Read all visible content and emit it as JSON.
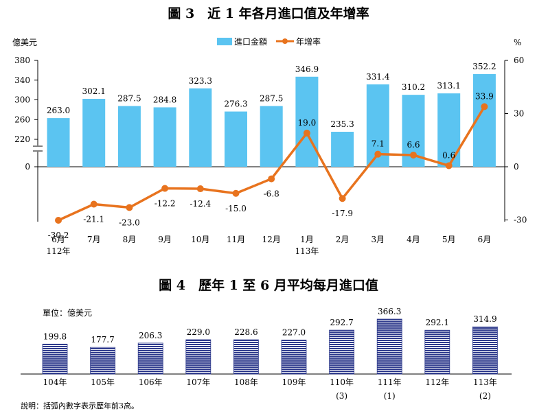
{
  "chart_data": [
    {
      "type": "bar+line",
      "title": "圖 3　近 1 年各月進口值及年增率",
      "y_left_unit": "億美元",
      "y_right_unit": "%",
      "legend": {
        "bar": "進口金額",
        "line": "年增率",
        "position": "top-center"
      },
      "left_axis_ticks": [
        "380",
        "340",
        "300",
        "260",
        "220",
        "0"
      ],
      "left_axis_note": "broken axis between 220 and 0",
      "ylim_left": [
        0,
        380
      ],
      "right_axis_ticks": [
        "60",
        "30",
        "0",
        "-30"
      ],
      "ylim_right": [
        -30,
        60
      ],
      "categories": [
        [
          "6月",
          "112年"
        ],
        [
          "7月"
        ],
        [
          "8月"
        ],
        [
          "9月"
        ],
        [
          "10月"
        ],
        [
          "11月"
        ],
        [
          "12月"
        ],
        [
          "1月",
          "113年"
        ],
        [
          "2月"
        ],
        [
          "3月"
        ],
        [
          "4月"
        ],
        [
          "5月"
        ],
        [
          "6月"
        ]
      ],
      "series": [
        {
          "name": "進口金額",
          "kind": "bar",
          "color": "#5bc4f1",
          "values": [
            263.0,
            302.1,
            287.5,
            284.8,
            323.3,
            276.3,
            287.5,
            346.9,
            235.3,
            331.4,
            310.2,
            313.1,
            352.2
          ],
          "labels": [
            "263.0",
            "302.1",
            "287.5",
            "284.8",
            "323.3",
            "276.3",
            "287.5",
            "346.9",
            "235.3",
            "331.4",
            "310.2",
            "313.1",
            "352.2"
          ]
        },
        {
          "name": "年增率",
          "kind": "line",
          "color": "#e8731e",
          "values": [
            -30.2,
            -21.1,
            -23.0,
            -12.2,
            -12.4,
            -15.0,
            -6.8,
            19.0,
            -17.9,
            7.1,
            6.6,
            0.6,
            33.9
          ],
          "labels": [
            "-30.2",
            "-21.1",
            "-23.0",
            "-12.2",
            "-12.4",
            "-15.0",
            "-6.8",
            "19.0",
            "-17.9",
            "7.1",
            "6.6",
            "0.6",
            "33.9"
          ]
        }
      ]
    },
    {
      "type": "bar",
      "title": "圖 4　歷年 1 至 6 月平均每月進口值",
      "unit_label": "單位：億美元",
      "color": "#2e3a8c",
      "categories": [
        "104年",
        "105年",
        "106年",
        "107年",
        "108年",
        "109年",
        "110年",
        "111年",
        "112年",
        "113年"
      ],
      "rank_notes": [
        "",
        "",
        "",
        "",
        "",
        "",
        "(3)",
        "(1)",
        "",
        "(2)"
      ],
      "values": [
        199.8,
        177.7,
        206.3,
        229.0,
        228.6,
        227.0,
        292.7,
        366.3,
        292.1,
        314.9
      ],
      "labels": [
        "199.8",
        "177.7",
        "206.3",
        "229.0",
        "228.6",
        "227.0",
        "292.7",
        "366.3",
        "292.1",
        "314.9"
      ],
      "note": "說明：括弧內數字表示歷年前3高。"
    }
  ]
}
